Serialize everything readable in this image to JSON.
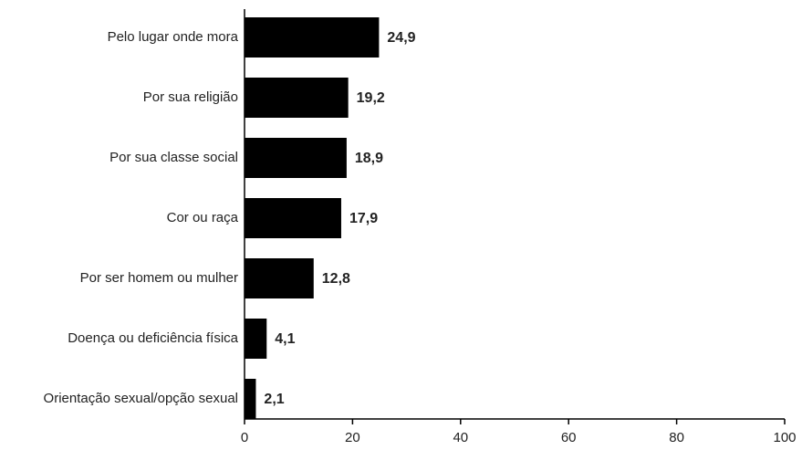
{
  "chart_data": {
    "type": "barh",
    "categories": [
      "Pelo lugar onde mora",
      "Por sua religião",
      "Por sua classe social",
      "Cor ou raça",
      "Por ser homem ou mulher",
      "Doença ou deficiência física",
      "Orientação sexual/opção sexual"
    ],
    "values": [
      24.9,
      19.2,
      18.9,
      17.9,
      12.8,
      4.1,
      2.1
    ],
    "value_labels": [
      "24,9",
      "19,2",
      "18,9",
      "17,9",
      "12,8",
      "4,1",
      "2,1"
    ],
    "color": "#000000",
    "xlim": [
      0,
      100
    ],
    "xticks": [
      0,
      20,
      40,
      60,
      80,
      100
    ],
    "grid": false
  }
}
